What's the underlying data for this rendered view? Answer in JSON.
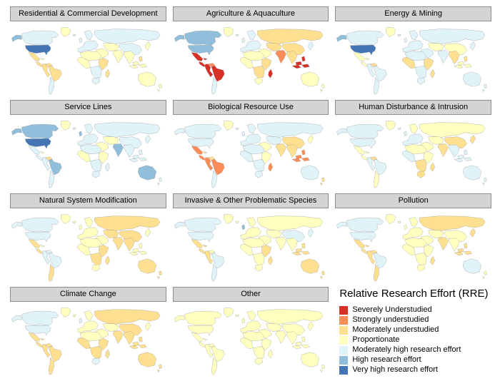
{
  "legend": {
    "title": "Relative Research Effort (RRE)",
    "entries": [
      {
        "label": "Severely Understudied",
        "color": "#d73027"
      },
      {
        "label": "Strongly understudied",
        "color": "#fc8d59"
      },
      {
        "label": "Moderately understudied",
        "color": "#fee090"
      },
      {
        "label": "Proportionate",
        "color": "#ffffbf"
      },
      {
        "label": "Moderately high research effort",
        "color": "#e0f3f8"
      },
      {
        "label": "High research effort",
        "color": "#91bfdb"
      },
      {
        "label": "Very high research effort",
        "color": "#4575b4"
      }
    ]
  },
  "strip_style": {
    "background": "#d4d4d4",
    "border": "#8e8e8e"
  },
  "map_style": {
    "ocean": "#ffffff",
    "country_border": "#7f7f7f"
  },
  "region_order": [
    "greenland",
    "alaska",
    "canada",
    "usa",
    "mexico",
    "central_america",
    "cuba",
    "venezuela",
    "colombia_peru",
    "brazil",
    "southern_cone",
    "uk",
    "iceland",
    "scandinavia",
    "europe",
    "russia",
    "central_asia",
    "china",
    "japan",
    "middle_east",
    "india",
    "se_asia",
    "north_africa",
    "west_africa",
    "east_africa",
    "southern_africa",
    "south_africa",
    "madagascar",
    "indonesia",
    "philippines",
    "australia",
    "new_zealand"
  ],
  "panels": [
    {
      "title": "Residential & Commercial Development",
      "values": [
        3,
        5,
        4,
        6,
        2,
        2,
        3,
        2,
        2,
        2,
        4,
        4,
        4,
        4,
        4,
        4,
        3,
        4,
        3,
        3,
        3,
        3,
        3,
        3,
        2,
        4,
        4,
        2,
        3,
        2,
        3,
        3
      ]
    },
    {
      "title": "Agriculture & Aquaculture",
      "values": [
        3,
        5,
        5,
        5,
        0,
        0,
        0,
        1,
        0,
        0,
        4,
        4,
        4,
        4,
        4,
        2,
        2,
        2,
        4,
        3,
        1,
        2,
        3,
        3,
        2,
        2,
        3,
        0,
        0,
        0,
        3,
        3
      ]
    },
    {
      "title": "Energy & Mining",
      "values": [
        3,
        5,
        4,
        6,
        3,
        3,
        3,
        2,
        4,
        4,
        4,
        4,
        4,
        4,
        4,
        4,
        3,
        3,
        4,
        4,
        4,
        2,
        4,
        2,
        2,
        4,
        4,
        2,
        3,
        2,
        4,
        4
      ]
    },
    {
      "title": "Service Lines",
      "values": [
        3,
        5,
        5,
        6,
        4,
        4,
        3,
        2,
        4,
        5,
        4,
        5,
        4,
        4,
        4,
        4,
        3,
        4,
        4,
        3,
        5,
        4,
        4,
        3,
        3,
        4,
        4,
        4,
        4,
        4,
        5,
        4
      ]
    },
    {
      "title": "Biological Resource Use",
      "values": [
        3,
        4,
        4,
        4,
        1,
        1,
        2,
        2,
        1,
        1,
        4,
        4,
        4,
        4,
        4,
        4,
        4,
        2,
        3,
        3,
        2,
        2,
        4,
        4,
        3,
        4,
        4,
        1,
        1,
        1,
        4,
        2
      ]
    },
    {
      "title": "Human Disturbance & Intrusion",
      "values": [
        3,
        4,
        4,
        4,
        3,
        3,
        3,
        2,
        4,
        4,
        3,
        4,
        4,
        3,
        4,
        3,
        3,
        2,
        2,
        3,
        2,
        4,
        3,
        4,
        3,
        2,
        2,
        2,
        4,
        4,
        4,
        4
      ]
    },
    {
      "title": "Natural System Modification",
      "values": [
        3,
        4,
        4,
        4,
        2,
        2,
        3,
        4,
        4,
        4,
        2,
        3,
        3,
        3,
        3,
        2,
        2,
        2,
        3,
        3,
        2,
        2,
        3,
        3,
        2,
        2,
        3,
        2,
        3,
        3,
        2,
        2
      ]
    },
    {
      "title": "Invasive & Other Problematic Species",
      "values": [
        3,
        4,
        4,
        4,
        2,
        2,
        2,
        3,
        2,
        4,
        4,
        5,
        3,
        3,
        3,
        3,
        3,
        4,
        4,
        3,
        3,
        3,
        3,
        3,
        2,
        3,
        3,
        2,
        2,
        2,
        2,
        2
      ]
    },
    {
      "title": "Pollution",
      "values": [
        3,
        4,
        4,
        4,
        2,
        2,
        2,
        2,
        2,
        4,
        2,
        3,
        3,
        3,
        3,
        2,
        3,
        3,
        2,
        3,
        2,
        3,
        3,
        3,
        3,
        3,
        3,
        2,
        2,
        2,
        4,
        3
      ]
    },
    {
      "title": "Climate Change",
      "values": [
        3,
        4,
        4,
        4,
        2,
        2,
        2,
        2,
        2,
        2,
        2,
        4,
        3,
        3,
        3,
        2,
        3,
        2,
        3,
        3,
        2,
        2,
        3,
        2,
        2,
        2,
        4,
        2,
        2,
        2,
        2,
        2
      ]
    },
    {
      "title": "Other",
      "values": [
        3,
        3,
        3,
        3,
        3,
        3,
        3,
        3,
        3,
        3,
        3,
        3,
        3,
        3,
        3,
        3,
        3,
        3,
        3,
        3,
        3,
        3,
        3,
        3,
        3,
        3,
        3,
        3,
        3,
        3,
        3,
        3
      ]
    }
  ]
}
